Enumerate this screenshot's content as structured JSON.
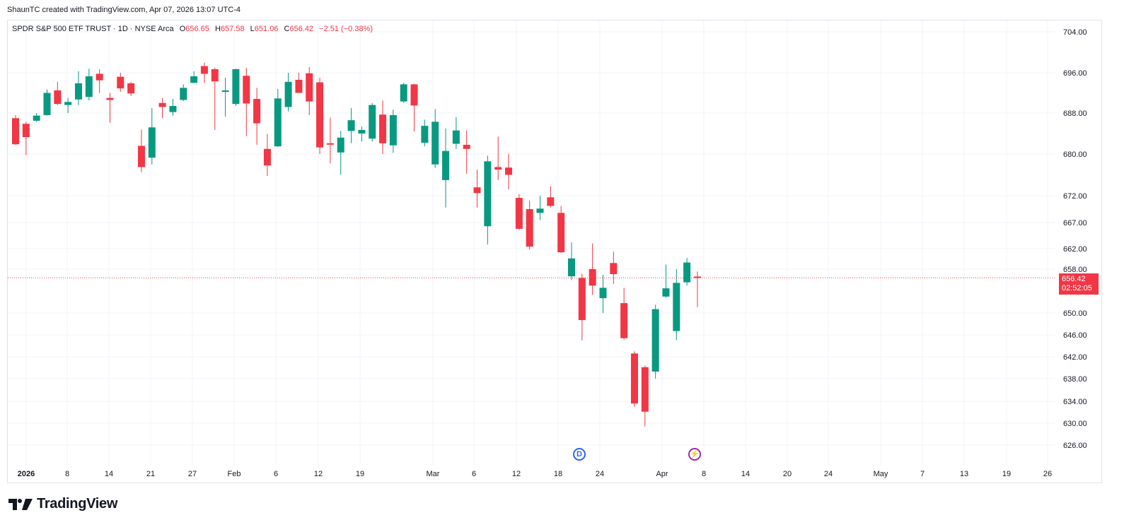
{
  "header": {
    "credit": "ShaunTC created with TradingView.com, Apr 07, 2026 13:07 UTC-4"
  },
  "legend": {
    "symbol": "SPDR S&P 500 ETF TRUST · 1D · NYSE Arca",
    "o_label": "O",
    "o_value": "656.65",
    "h_label": "H",
    "h_value": "657.58",
    "l_label": "L",
    "l_value": "651.06",
    "c_label": "C",
    "c_value": "656.42",
    "change": "−2.51 (−0.38%)"
  },
  "last_price": {
    "price": "656.42",
    "countdown": "02:52:05"
  },
  "markers": {
    "dividend": "D",
    "earnings": "⚡"
  },
  "brand": {
    "name": "TradingView"
  },
  "colors": {
    "up": "#089981",
    "down": "#f23645",
    "grid": "#f0f3fa",
    "text": "#131722",
    "dividend": "#2962ff",
    "earnings": "#9c27b0"
  },
  "chart_data": {
    "type": "candlestick",
    "title": "SPDR S&P 500 ETF TRUST · 1D · NYSE Arca",
    "y_ticks": [
      704,
      696,
      688,
      680,
      672,
      667,
      662,
      658,
      650,
      646,
      642,
      638,
      634,
      630,
      626
    ],
    "y_tick_labels": [
      "704.00",
      "696.00",
      "688.00",
      "680.00",
      "672.00",
      "667.00",
      "662.00",
      "658.00",
      "650.00",
      "646.00",
      "642.00",
      "638.00",
      "634.00",
      "630.00",
      "626.00"
    ],
    "x_tick_labels": [
      "2026",
      "8",
      "14",
      "21",
      "27",
      "Feb",
      "6",
      "12",
      "19",
      "Mar",
      "6",
      "12",
      "18",
      "24",
      "Apr",
      "8",
      "14",
      "20",
      "24",
      "May",
      "7",
      "13",
      "19",
      "26"
    ],
    "last_close": 656.42,
    "candles": [
      {
        "o": 687.0,
        "h": 687.6,
        "l": 681.8,
        "c": 681.9
      },
      {
        "o": 685.9,
        "h": 686.3,
        "l": 679.8,
        "c": 683.3
      },
      {
        "o": 686.5,
        "h": 688.0,
        "l": 686.3,
        "c": 687.5
      },
      {
        "o": 687.6,
        "h": 692.7,
        "l": 687.5,
        "c": 692.0
      },
      {
        "o": 692.5,
        "h": 694.2,
        "l": 689.6,
        "c": 689.8
      },
      {
        "o": 689.6,
        "h": 691.0,
        "l": 688.0,
        "c": 690.2
      },
      {
        "o": 690.7,
        "h": 696.3,
        "l": 689.6,
        "c": 693.9
      },
      {
        "o": 691.2,
        "h": 696.8,
        "l": 690.5,
        "c": 695.3
      },
      {
        "o": 695.8,
        "h": 696.7,
        "l": 692.0,
        "c": 694.5
      },
      {
        "o": 691.0,
        "h": 692.0,
        "l": 686.1,
        "c": 690.6
      },
      {
        "o": 695.2,
        "h": 696.0,
        "l": 692.2,
        "c": 692.9
      },
      {
        "o": 693.9,
        "h": 694.2,
        "l": 691.4,
        "c": 691.9
      },
      {
        "o": 681.6,
        "h": 684.8,
        "l": 676.5,
        "c": 677.5
      },
      {
        "o": 679.3,
        "h": 689.0,
        "l": 678.0,
        "c": 685.2
      },
      {
        "o": 690.0,
        "h": 691.0,
        "l": 687.0,
        "c": 689.2
      },
      {
        "o": 688.2,
        "h": 690.8,
        "l": 687.5,
        "c": 689.4
      },
      {
        "o": 690.6,
        "h": 693.7,
        "l": 690.4,
        "c": 693.0
      },
      {
        "o": 694.0,
        "h": 696.3,
        "l": 693.9,
        "c": 695.3
      },
      {
        "o": 697.3,
        "h": 698.0,
        "l": 694.0,
        "c": 695.8
      },
      {
        "o": 696.7,
        "h": 697.0,
        "l": 684.7,
        "c": 694.3
      },
      {
        "o": 692.2,
        "h": 695.0,
        "l": 687.3,
        "c": 692.5
      },
      {
        "o": 689.8,
        "h": 696.8,
        "l": 689.4,
        "c": 696.7
      },
      {
        "o": 695.4,
        "h": 697.0,
        "l": 683.5,
        "c": 689.9
      },
      {
        "o": 690.8,
        "h": 693.0,
        "l": 681.8,
        "c": 686.0
      },
      {
        "o": 681.0,
        "h": 683.9,
        "l": 675.8,
        "c": 677.8
      },
      {
        "o": 681.5,
        "h": 692.8,
        "l": 681.4,
        "c": 690.9
      },
      {
        "o": 689.2,
        "h": 696.0,
        "l": 688.3,
        "c": 694.2
      },
      {
        "o": 694.6,
        "h": 696.0,
        "l": 692.2,
        "c": 692.0
      },
      {
        "o": 695.9,
        "h": 697.1,
        "l": 687.6,
        "c": 690.3
      },
      {
        "o": 694.1,
        "h": 695.0,
        "l": 680.0,
        "c": 681.3
      },
      {
        "o": 682.1,
        "h": 687.1,
        "l": 678.2,
        "c": 682.0
      },
      {
        "o": 680.3,
        "h": 684.5,
        "l": 676.0,
        "c": 683.2
      },
      {
        "o": 684.5,
        "h": 689.0,
        "l": 682.1,
        "c": 686.6
      },
      {
        "o": 684.0,
        "h": 685.4,
        "l": 682.4,
        "c": 684.7
      },
      {
        "o": 683.0,
        "h": 690.0,
        "l": 682.4,
        "c": 689.6
      },
      {
        "o": 687.7,
        "h": 690.5,
        "l": 680.0,
        "c": 682.1
      },
      {
        "o": 681.7,
        "h": 688.7,
        "l": 680.2,
        "c": 687.6
      },
      {
        "o": 690.3,
        "h": 694.0,
        "l": 690.0,
        "c": 693.7
      },
      {
        "o": 693.7,
        "h": 693.8,
        "l": 684.4,
        "c": 689.5
      },
      {
        "o": 682.2,
        "h": 686.7,
        "l": 681.5,
        "c": 685.5
      },
      {
        "o": 678.0,
        "h": 688.8,
        "l": 677.3,
        "c": 686.3
      },
      {
        "o": 675.0,
        "h": 685.0,
        "l": 669.8,
        "c": 680.6
      },
      {
        "o": 682.0,
        "h": 687.2,
        "l": 681.0,
        "c": 684.6
      },
      {
        "o": 681.8,
        "h": 684.6,
        "l": 676.2,
        "c": 681.0
      },
      {
        "o": 673.6,
        "h": 677.0,
        "l": 669.8,
        "c": 672.5
      },
      {
        "o": 666.3,
        "h": 679.7,
        "l": 662.8,
        "c": 678.6
      },
      {
        "o": 677.5,
        "h": 683.4,
        "l": 675.0,
        "c": 677.0
      },
      {
        "o": 677.4,
        "h": 680.0,
        "l": 673.2,
        "c": 676.0
      },
      {
        "o": 671.6,
        "h": 672.3,
        "l": 665.6,
        "c": 665.8
      },
      {
        "o": 669.5,
        "h": 671.1,
        "l": 661.8,
        "c": 662.4
      },
      {
        "o": 668.8,
        "h": 672.0,
        "l": 667.5,
        "c": 669.6
      },
      {
        "o": 671.7,
        "h": 673.8,
        "l": 669.8,
        "c": 670.1
      },
      {
        "o": 668.8,
        "h": 670.1,
        "l": 661.2,
        "c": 661.3
      },
      {
        "o": 656.7,
        "h": 663.2,
        "l": 656.0,
        "c": 660.1
      },
      {
        "o": 656.4,
        "h": 657.2,
        "l": 645.0,
        "c": 648.7
      },
      {
        "o": 658.0,
        "h": 663.0,
        "l": 653.3,
        "c": 655.0
      },
      {
        "o": 652.7,
        "h": 657.0,
        "l": 650.0,
        "c": 654.6
      },
      {
        "o": 659.2,
        "h": 661.4,
        "l": 655.3,
        "c": 657.1
      },
      {
        "o": 651.8,
        "h": 654.6,
        "l": 645.2,
        "c": 645.4
      },
      {
        "o": 642.6,
        "h": 643.0,
        "l": 633.0,
        "c": 633.6
      },
      {
        "o": 640.1,
        "h": 640.4,
        "l": 629.4,
        "c": 632.1
      },
      {
        "o": 639.3,
        "h": 651.5,
        "l": 638.0,
        "c": 650.7
      },
      {
        "o": 653.0,
        "h": 658.9,
        "l": 652.8,
        "c": 654.5
      },
      {
        "o": 646.7,
        "h": 658.0,
        "l": 645.0,
        "c": 655.5
      },
      {
        "o": 655.6,
        "h": 660.2,
        "l": 655.0,
        "c": 659.3
      },
      {
        "o": 656.65,
        "h": 657.58,
        "l": 651.06,
        "c": 656.42
      }
    ]
  }
}
